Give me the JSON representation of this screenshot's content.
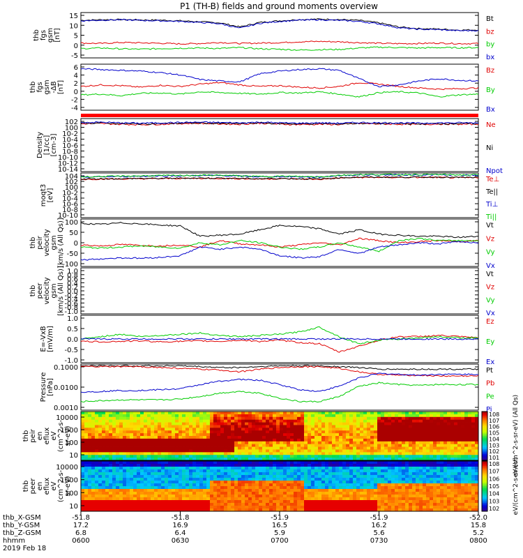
{
  "title": "P1 (TH-B) fields and ground moments overview",
  "colors": {
    "black": "#000000",
    "red": "#e00000",
    "green": "#00cc00",
    "blue": "#0000cc"
  },
  "chart_data": [
    {
      "id": "p1",
      "type": "line",
      "ylabel": [
        "thb",
        "fgs",
        "gsm",
        "[nT]"
      ],
      "yticks": [
        "15",
        "10",
        "5",
        "0",
        "-5"
      ],
      "ylim": [
        -6,
        16
      ],
      "series": [
        {
          "name": "Bt",
          "color": "black",
          "values": [
            12.2,
            12.5,
            12.6,
            12.4,
            12.3,
            12.0,
            11.5,
            11.0,
            9.0,
            11.2,
            12.0,
            12.6,
            12.8,
            12.6,
            12.2,
            11.0,
            9.0,
            8.2,
            8.0,
            7.5,
            7.6
          ]
        },
        {
          "name": "bz",
          "color": "red",
          "values": [
            1.2,
            1.0,
            1.5,
            1.3,
            1.1,
            0.8,
            1.0,
            1.5,
            1.0,
            1.2,
            1.4,
            1.8,
            2.0,
            1.8,
            1.4,
            1.1,
            0.9,
            1.0,
            1.2,
            0.9,
            1.0
          ]
        },
        {
          "name": "by",
          "color": "green",
          "values": [
            -1.5,
            -1.2,
            -1.6,
            -1.8,
            -1.5,
            -1.3,
            -1.2,
            -1.4,
            -1.0,
            -1.6,
            -1.8,
            -2.2,
            -2.0,
            -1.9,
            -1.2,
            -0.8,
            -1.0,
            -1.2,
            -1.0,
            -1.1,
            -1.0
          ]
        },
        {
          "name": "bx",
          "color": "blue",
          "values": [
            12.0,
            12.3,
            12.5,
            12.2,
            12.0,
            11.7,
            11.2,
            10.6,
            8.4,
            10.8,
            11.7,
            12.3,
            12.5,
            12.2,
            11.7,
            10.5,
            8.6,
            7.9,
            7.7,
            7.2,
            7.3
          ]
        }
      ]
    },
    {
      "id": "p2",
      "type": "line",
      "ylabel": [
        "thb",
        "fgs",
        "gsm",
        "-ΔB",
        "[nT]"
      ],
      "yticks": [
        "6",
        "4",
        "2",
        "0",
        "-2",
        "-4"
      ],
      "ylim": [
        -5,
        7
      ],
      "series": [
        {
          "name": "Bz",
          "color": "red",
          "values": [
            1.2,
            1.6,
            1.4,
            1.0,
            1.5,
            1.2,
            1.8,
            2.2,
            1.6,
            1.2,
            1.4,
            1.0,
            0.8,
            1.2,
            2.2,
            1.8,
            1.2,
            0.8,
            0.5,
            0.6,
            0.8
          ]
        },
        {
          "name": "By",
          "color": "green",
          "values": [
            -1.0,
            -0.8,
            -1.2,
            -0.6,
            -0.5,
            -0.8,
            -0.2,
            -0.4,
            -0.6,
            -0.8,
            -0.4,
            -0.5,
            -0.2,
            -0.8,
            -1.5,
            -0.4,
            -0.2,
            -0.5,
            -1.5,
            -1.0,
            -0.8
          ]
        },
        {
          "name": "Bx",
          "color": "blue",
          "values": [
            5.8,
            5.6,
            5.4,
            5.2,
            4.8,
            4.2,
            3.0,
            2.6,
            2.4,
            4.5,
            5.2,
            5.6,
            5.8,
            5.4,
            3.2,
            1.2,
            1.6,
            2.6,
            3.2,
            2.8,
            2.6
          ]
        }
      ]
    },
    {
      "id": "p3",
      "type": "line",
      "ylabel": [
        "Density",
        "[1/cc]",
        "[cm-3]"
      ],
      "yticks": [
        "10^2",
        "10^0",
        "10^-2",
        "10^-4",
        "10^-6",
        "10^-8",
        "10^-10",
        "10^-12",
        "10^-14"
      ],
      "ylim": [
        -14,
        2
      ],
      "yscale": "log",
      "series": [
        {
          "name": "Ne",
          "color": "red",
          "values": [
            0.4,
            0.5,
            0.3,
            0.2,
            0.3,
            0.5,
            0.6,
            0.4,
            0.3,
            0.6,
            0.3,
            0.2,
            0.3,
            0.2,
            0.5,
            0.4,
            0.3,
            0.2,
            0.4,
            0.3,
            0.3
          ]
        },
        {
          "name": "Ni",
          "color": "black",
          "values": [
            0.6,
            0.7,
            0.5,
            0.4,
            0.5,
            0.6,
            0.7,
            0.5,
            0.5,
            0.7,
            0.5,
            0.4,
            0.5,
            0.4,
            0.6,
            0.5,
            0.5,
            0.4,
            0.5,
            0.5,
            0.5
          ]
        },
        {
          "name": "Npot",
          "color": "blue",
          "values": [
            0.8,
            0.9,
            0.7,
            0.6,
            0.7,
            0.8,
            0.9,
            0.8,
            0.7,
            0.9,
            0.7,
            0.6,
            0.7,
            0.6,
            0.8,
            0.7,
            0.7,
            0.6,
            0.7,
            0.7,
            0.7
          ]
        }
      ]
    },
    {
      "id": "p4",
      "type": "line",
      "ylabel": [
        "moqt3",
        "[eV]"
      ],
      "yticks": [
        "10^4",
        "10^2",
        "10^0",
        "10^-2",
        "10^-4",
        "10^-6",
        "10^-8",
        "10^-10"
      ],
      "ylim": [
        -10,
        4
      ],
      "yscale": "log",
      "series": [
        {
          "name": "Te⊥",
          "color": "red",
          "values": [
            2.0,
            2.1,
            2.1,
            2.2,
            2.2,
            2.3,
            2.3,
            2.3,
            2.2,
            2.1,
            2.2,
            2.1,
            2.0,
            2.4,
            2.6,
            2.6,
            2.6,
            2.6,
            2.6,
            2.5,
            2.5
          ]
        },
        {
          "name": "Te||",
          "color": "black",
          "values": [
            2.1,
            2.2,
            2.2,
            2.3,
            2.3,
            2.4,
            2.4,
            2.4,
            2.3,
            2.2,
            2.3,
            2.2,
            2.1,
            2.5,
            2.7,
            2.7,
            2.7,
            2.7,
            2.7,
            2.6,
            2.6
          ]
        },
        {
          "name": "Ti⊥",
          "color": "blue",
          "values": [
            2.7,
            2.8,
            2.9,
            3.0,
            3.1,
            3.1,
            3.2,
            3.2,
            3.0,
            2.8,
            2.9,
            2.8,
            2.7,
            3.2,
            3.4,
            3.4,
            3.4,
            3.4,
            3.4,
            3.3,
            3.3
          ]
        },
        {
          "name": "Ti||",
          "color": "green",
          "values": [
            2.8,
            2.9,
            3.0,
            3.1,
            3.2,
            3.2,
            3.3,
            3.3,
            3.1,
            2.9,
            3.0,
            2.9,
            2.8,
            3.3,
            3.5,
            3.5,
            3.5,
            3.5,
            3.5,
            3.4,
            3.4
          ]
        }
      ]
    },
    {
      "id": "p5",
      "type": "line",
      "ylabel": [
        "thb",
        "peir",
        "velocity",
        "gsm",
        "[km/s (All Qs)]"
      ],
      "yticks": [
        "100",
        "50",
        "0",
        "-50",
        "-100"
      ],
      "ylim": [
        -110,
        110
      ],
      "series": [
        {
          "name": "Vt",
          "color": "black",
          "values": [
            90,
            85,
            92,
            88,
            82,
            78,
            30,
            35,
            40,
            60,
            80,
            75,
            65,
            40,
            60,
            40,
            35,
            30,
            30,
            25,
            30
          ]
        },
        {
          "name": "Vz",
          "color": "red",
          "values": [
            -10,
            -15,
            -8,
            -12,
            -15,
            -10,
            -20,
            10,
            -5,
            -10,
            -20,
            -10,
            0,
            -10,
            20,
            10,
            0,
            5,
            10,
            5,
            10
          ]
        },
        {
          "name": "Vy",
          "color": "green",
          "values": [
            -20,
            -25,
            -20,
            -15,
            -20,
            -25,
            0,
            -10,
            10,
            0,
            -20,
            -30,
            -20,
            0,
            -20,
            -40,
            10,
            20,
            10,
            10,
            10
          ]
        },
        {
          "name": "Vx",
          "color": "blue",
          "values": [
            -80,
            -75,
            -70,
            -72,
            -68,
            -60,
            -20,
            -30,
            -20,
            -30,
            -60,
            -70,
            -65,
            -30,
            -50,
            -20,
            -10,
            0,
            -5,
            5,
            0
          ]
        }
      ]
    },
    {
      "id": "p6",
      "type": "line",
      "ylabel": [
        "thb",
        "peer",
        "velocity",
        "gsm",
        "[km/s (All Qs)]"
      ],
      "yticks": [
        "1.0",
        "0.8",
        "0.6",
        "0.4",
        "0.2",
        "0.0",
        "-0.2",
        "-0.4",
        "-0.6",
        "-0.8",
        "-1.0"
      ],
      "ylim": [
        -1,
        1
      ],
      "series": []
    },
    {
      "id": "p7",
      "type": "line",
      "ylabel": [
        "E=-VxB",
        "[mV/m]"
      ],
      "yticks": [
        "1.0",
        "0.5",
        "0.0",
        "-0.5",
        "-1.0"
      ],
      "ylim": [
        -1,
        1
      ],
      "series": [
        {
          "name": "Ez",
          "color": "red",
          "values": [
            -0.1,
            -0.12,
            -0.1,
            -0.08,
            -0.12,
            -0.1,
            -0.08,
            -0.1,
            -0.05,
            -0.1,
            -0.05,
            -0.15,
            -0.2,
            -0.55,
            -0.3,
            -0.05,
            0.1,
            0.1,
            0.15,
            0.1,
            0.05
          ]
        },
        {
          "name": "Ey",
          "color": "green",
          "values": [
            0.0,
            0.1,
            0.2,
            0.1,
            0.15,
            0.2,
            0.25,
            0.15,
            0.1,
            0.15,
            0.2,
            0.3,
            0.5,
            0.1,
            -0.2,
            -0.05,
            0.0,
            0.05,
            0.1,
            0.05,
            0.05
          ]
        },
        {
          "name": "Ex",
          "color": "blue",
          "values": [
            0.0,
            0.0,
            0.0,
            0.0,
            0.0,
            0.0,
            0.0,
            0.0,
            0.0,
            0.0,
            0.0,
            0.0,
            0.0,
            0.0,
            0.0,
            0.0,
            0.0,
            0.0,
            0.0,
            0.0,
            0.0
          ]
        }
      ]
    },
    {
      "id": "p8",
      "type": "line",
      "ylabel": [
        "Pressure",
        "[nPa]"
      ],
      "yticks": [
        "0.1000",
        "0.0100",
        "0.0010"
      ],
      "ylim": [
        -3.6,
        -0.9
      ],
      "yscale": "log",
      "series": [
        {
          "name": "Pt",
          "color": "black",
          "values": [
            -1.0,
            -1.0,
            -1.0,
            -1.0,
            -1.0,
            -1.0,
            -1.05,
            -1.1,
            -1.1,
            -1.05,
            -1.0,
            -1.0,
            -1.0,
            -1.05,
            -1.1,
            -1.2,
            -1.2,
            -1.2,
            -1.2,
            -1.2,
            -1.2
          ]
        },
        {
          "name": "Pb",
          "color": "red",
          "values": [
            -1.05,
            -1.05,
            -1.05,
            -1.05,
            -1.1,
            -1.15,
            -1.2,
            -1.25,
            -1.35,
            -1.2,
            -1.1,
            -1.05,
            -1.05,
            -1.15,
            -1.35,
            -1.5,
            -1.55,
            -1.55,
            -1.6,
            -1.6,
            -1.6
          ]
        },
        {
          "name": "Pe",
          "color": "green",
          "values": [
            -3.1,
            -3.05,
            -3.0,
            -3.0,
            -3.0,
            -2.95,
            -2.8,
            -2.6,
            -2.5,
            -2.6,
            -2.9,
            -3.1,
            -3.1,
            -2.8,
            -2.2,
            -2.0,
            -2.1,
            -2.15,
            -2.1,
            -2.1,
            -2.1
          ]
        },
        {
          "name": "Pi",
          "color": "blue",
          "values": [
            -2.55,
            -2.5,
            -2.45,
            -2.45,
            -2.4,
            -2.35,
            -2.1,
            -1.9,
            -1.8,
            -1.85,
            -2.1,
            -2.4,
            -2.5,
            -2.2,
            -1.7,
            -1.45,
            -1.5,
            -1.55,
            -1.5,
            -1.5,
            -1.5
          ]
        }
      ]
    },
    {
      "id": "p9",
      "type": "heatmap",
      "ylabel": [
        "thb",
        "peir",
        "en",
        "eflux",
        "eV",
        "(cm^2-s-",
        "sr-eV)"
      ],
      "yticks": [
        "10000",
        "1000",
        "100",
        "10"
      ],
      "colorbar_ticks": [
        "10^8",
        "10^7",
        "10^6",
        "10^5",
        "10^4",
        "10^3",
        "10^2",
        "10^1"
      ],
      "colorbar_label": "eV/(cm^2-s-sr-eV) (All Qs)"
    },
    {
      "id": "p10",
      "type": "heatmap",
      "ylabel": [
        "thb",
        "peer",
        "en",
        "eflux",
        "eV",
        "(cm^2-s-",
        "sr-eV)"
      ],
      "yticks": [
        "10000",
        "1000",
        "100",
        "10"
      ],
      "colorbar_ticks": [
        "10^8",
        "10^7",
        "10^6",
        "10^5",
        "10^4",
        "10^3",
        "10^2"
      ],
      "colorbar_label": "eV/(cm^2-s-sr-eV)"
    }
  ],
  "xaxis": {
    "row_labels": [
      "thb_X-GSM",
      "thb_Y-GSM",
      "thb_Z-GSM",
      "hhmm",
      "2019 Feb 18"
    ],
    "ticks": [
      {
        "x": "-51.8",
        "y": "17.2",
        "z": "6.8",
        "t": "0600"
      },
      {
        "x": "-51.8",
        "y": "16.9",
        "z": "6.4",
        "t": "0630"
      },
      {
        "x": "-51.9",
        "y": "16.5",
        "z": "5.9",
        "t": "0700"
      },
      {
        "x": "-51.9",
        "y": "16.2",
        "z": "5.6",
        "t": "0730"
      },
      {
        "x": "-52.0",
        "y": "15.8",
        "z": "5.2",
        "t": "0800"
      }
    ]
  }
}
